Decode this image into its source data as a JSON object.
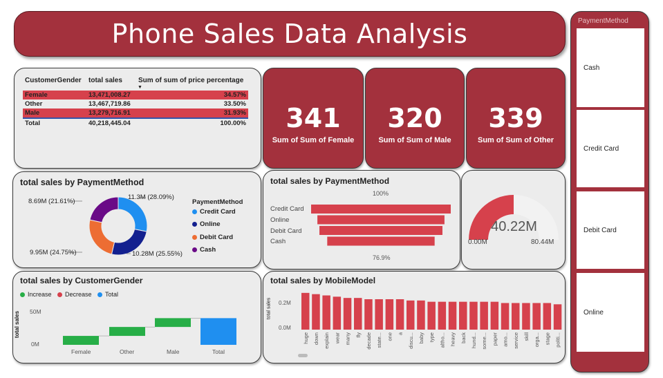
{
  "header": {
    "title": "Phone Sales Data Analysis"
  },
  "table": {
    "headers": [
      "CustomerGender",
      "total sales",
      "Sum of sum of price percentage"
    ],
    "sort_indicator": "▼",
    "rows": [
      {
        "gender": "Female",
        "sales": "13,471,008.27",
        "pct": "34.57%"
      },
      {
        "gender": "Other",
        "sales": "13,467,719.86",
        "pct": "33.50%"
      },
      {
        "gender": "Male",
        "sales": "13,279,716.91",
        "pct": "31.93%"
      }
    ],
    "total": {
      "label": "Total",
      "sales": "40,218,445.04",
      "pct": "100.00%"
    }
  },
  "kpis": [
    {
      "value": "341",
      "label": "Sum of Sum of Female"
    },
    {
      "value": "320",
      "label": "Sum of Sum of Male"
    },
    {
      "value": "339",
      "label": "Sum of Sum of Other"
    }
  ],
  "donut": {
    "title": "total sales by PaymentMethod",
    "legend_title": "PaymentMethod",
    "slice_labels": [
      "11.3M (28.09%)",
      "10.28M (25.55%)",
      "9.95M (24.75%)",
      "8.69M (21.61%)"
    ]
  },
  "funnel": {
    "title": "total sales by PaymentMethod",
    "top_label": "100%",
    "bottom_label": "76.9%"
  },
  "gauge": {
    "value_label": "40.22M",
    "min_label": "0.00M",
    "max_label": "80.44M",
    "value": 40.22,
    "min": 0,
    "max": 80.44,
    "color": "#d6414c",
    "track_color": "#f2f2f2"
  },
  "waterfall": {
    "title": "total sales by CustomerGender",
    "legend": [
      "Increase",
      "Decrease",
      "Total"
    ],
    "ylabel": "total sales",
    "yticks": [
      "50M",
      "0M"
    ]
  },
  "mobile": {
    "title": "total sales by MobileModel",
    "ylabel": "total sales",
    "yticks": [
      "0.2M",
      "0.0M"
    ]
  },
  "slicer": {
    "title": "PaymentMethod",
    "items": [
      "Cash",
      "Credit Card",
      "Debit Card",
      "Online"
    ]
  },
  "chart_data": [
    {
      "type": "pie",
      "title": "total sales by PaymentMethod",
      "categories": [
        "Credit Card",
        "Online",
        "Debit Card",
        "Cash"
      ],
      "values": [
        11.3,
        10.28,
        9.95,
        8.69
      ],
      "percent": [
        28.09,
        25.55,
        24.75,
        21.61
      ],
      "unit": "M",
      "colors": [
        "#1f8ff0",
        "#13208f",
        "#ed6d33",
        "#6a0a87"
      ],
      "legend": "right"
    },
    {
      "type": "bar",
      "subtype": "funnel",
      "title": "total sales by PaymentMethod",
      "categories": [
        "Credit Card",
        "Online",
        "Debit Card",
        "Cash"
      ],
      "values": [
        100,
        91,
        88.1,
        76.9
      ],
      "unit": "% of first",
      "color": "#d6414c"
    },
    {
      "type": "bar",
      "subtype": "waterfall",
      "title": "total sales by CustomerGender",
      "categories": [
        "Female",
        "Other",
        "Male",
        "Total"
      ],
      "values": [
        13.47,
        13.47,
        13.28,
        40.22
      ],
      "unit": "M",
      "ylabel": "total sales",
      "ylim": [
        0,
        50
      ],
      "colors": {
        "Increase": "#27ae47",
        "Decrease": "#d6414c",
        "Total": "#1f8ff0"
      },
      "legend": "top-left"
    },
    {
      "type": "bar",
      "title": "total sales by MobileModel",
      "categories": [
        "huge",
        "down",
        "explain",
        "wear",
        "many",
        "fly",
        "decade",
        "state...",
        "one",
        "a",
        "discu...",
        "baby",
        "type",
        "altho...",
        "heavy",
        "back",
        "hund...",
        "some...",
        "paper",
        "amo...",
        "service",
        "skill",
        "orga...",
        "stage",
        "politi..."
      ],
      "values": [
        0.29,
        0.28,
        0.27,
        0.26,
        0.25,
        0.25,
        0.24,
        0.24,
        0.24,
        0.24,
        0.23,
        0.23,
        0.22,
        0.22,
        0.22,
        0.22,
        0.22,
        0.22,
        0.22,
        0.21,
        0.21,
        0.21,
        0.21,
        0.21,
        0.2
      ],
      "unit": "M",
      "ylabel": "total sales",
      "ylim": [
        0,
        0.3
      ],
      "color": "#d6414c"
    }
  ]
}
